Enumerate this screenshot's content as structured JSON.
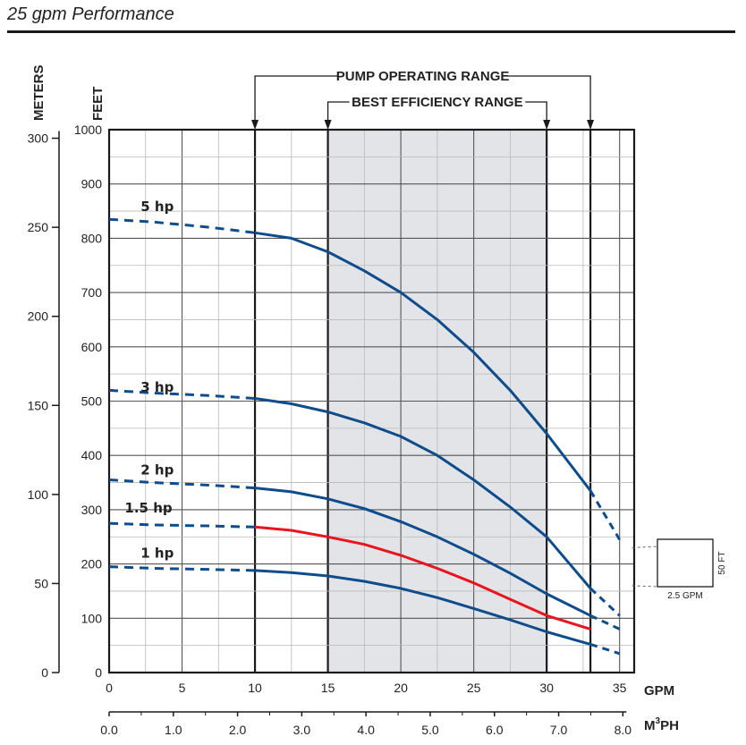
{
  "chart_data": {
    "type": "line",
    "title": "25 gpm Performance",
    "xlabel": "GPM",
    "x2label": "M3PH",
    "x2label_main": "M",
    "x2label_sup": "3",
    "x2label_tail": "PH",
    "ylabel": "FEET",
    "y2label": "METERS",
    "xlim": [
      0,
      36
    ],
    "ylim": [
      0,
      1000
    ],
    "x_ticks": [
      0,
      5,
      10,
      15,
      20,
      25,
      30,
      35
    ],
    "x_tick_labels": [
      "0",
      "5",
      "10",
      "15",
      "20",
      "25",
      "30",
      "35"
    ],
    "x2_ticks": [
      "0.0",
      "1.0",
      "2.0",
      "3.0",
      "4.0",
      "5.0",
      "6.0",
      "7.0",
      "8.0"
    ],
    "y_ticks": [
      0,
      100,
      200,
      300,
      400,
      500,
      600,
      700,
      800,
      900,
      1000
    ],
    "y_tick_labels": [
      "0",
      "100",
      "200",
      "300",
      "400",
      "500",
      "600",
      "700",
      "800",
      "900",
      "1000"
    ],
    "y2_ticks": [
      "0",
      "50",
      "100",
      "150",
      "200",
      "250",
      "300"
    ],
    "pump_operating_range": {
      "label": "PUMP OPERATING RANGE",
      "from": 10,
      "to": 33
    },
    "best_efficiency_range": {
      "label": "BEST EFFICIENCY RANGE",
      "from": 15,
      "to": 30
    },
    "scale_box": {
      "height_label": "50 FT",
      "width_label": "2.5 GPM"
    },
    "series": [
      {
        "name": "5 hp",
        "label": "5 hp",
        "color": "#0f4c8c",
        "label_x": 3.3,
        "label_y": 850,
        "dashed_start": [
          [
            0,
            835
          ],
          [
            3,
            830
          ],
          [
            7,
            820
          ],
          [
            10,
            810
          ]
        ],
        "solid": [
          [
            10,
            810
          ],
          [
            12.5,
            800
          ],
          [
            15,
            775
          ],
          [
            17.5,
            740
          ],
          [
            20,
            700
          ],
          [
            22.5,
            650
          ],
          [
            25,
            590
          ],
          [
            27.5,
            520
          ],
          [
            30,
            440
          ],
          [
            33,
            335
          ]
        ],
        "dashed_end": [
          [
            33,
            335
          ],
          [
            35,
            245
          ]
        ]
      },
      {
        "name": "3 hp",
        "label": "3 hp",
        "color": "#0f4c8c",
        "label_x": 3.3,
        "label_y": 517,
        "dashed_start": [
          [
            0,
            520
          ],
          [
            3,
            515
          ],
          [
            7,
            510
          ],
          [
            10,
            505
          ]
        ],
        "solid": [
          [
            10,
            505
          ],
          [
            12.5,
            495
          ],
          [
            15,
            480
          ],
          [
            17.5,
            460
          ],
          [
            20,
            435
          ],
          [
            22.5,
            400
          ],
          [
            25,
            355
          ],
          [
            27.5,
            305
          ],
          [
            30,
            250
          ],
          [
            33,
            155
          ]
        ],
        "dashed_end": [
          [
            33,
            155
          ],
          [
            35,
            105
          ]
        ]
      },
      {
        "name": "2 hp",
        "label": "2 hp",
        "color": "#0f4c8c",
        "label_x": 3.3,
        "label_y": 365,
        "dashed_start": [
          [
            0,
            355
          ],
          [
            3,
            350
          ],
          [
            7,
            345
          ],
          [
            10,
            340
          ]
        ],
        "solid": [
          [
            10,
            340
          ],
          [
            12.5,
            333
          ],
          [
            15,
            320
          ],
          [
            17.5,
            302
          ],
          [
            20,
            278
          ],
          [
            22.5,
            250
          ],
          [
            25,
            218
          ],
          [
            27.5,
            183
          ],
          [
            30,
            145
          ],
          [
            33,
            105
          ]
        ],
        "dashed_end": [
          [
            33,
            105
          ],
          [
            35,
            80
          ]
        ]
      },
      {
        "name": "1.5 hp",
        "label": "1.5 hp",
        "color": "#e8141e",
        "label_x": 2.7,
        "label_y": 295,
        "dashed_start": [
          [
            0,
            275
          ],
          [
            3,
            272
          ],
          [
            7,
            270
          ],
          [
            10,
            268
          ]
        ],
        "solid": [
          [
            10,
            268
          ],
          [
            12.5,
            262
          ],
          [
            15,
            250
          ],
          [
            17.5,
            236
          ],
          [
            20,
            216
          ],
          [
            22.5,
            192
          ],
          [
            25,
            165
          ],
          [
            27.5,
            135
          ],
          [
            30,
            105
          ],
          [
            33,
            80
          ]
        ],
        "dashed_end": []
      },
      {
        "name": "1 hp",
        "label": "1 hp",
        "color": "#0f4c8c",
        "label_x": 3.3,
        "label_y": 212,
        "dashed_start": [
          [
            0,
            195
          ],
          [
            3,
            192
          ],
          [
            7,
            190
          ],
          [
            10,
            188
          ]
        ],
        "solid": [
          [
            10,
            188
          ],
          [
            12.5,
            184
          ],
          [
            15,
            178
          ],
          [
            17.5,
            168
          ],
          [
            20,
            155
          ],
          [
            22.5,
            138
          ],
          [
            25,
            118
          ],
          [
            27.5,
            97
          ],
          [
            30,
            75
          ],
          [
            33,
            52
          ]
        ],
        "dashed_end": [
          [
            33,
            52
          ],
          [
            35,
            35
          ]
        ]
      }
    ]
  }
}
